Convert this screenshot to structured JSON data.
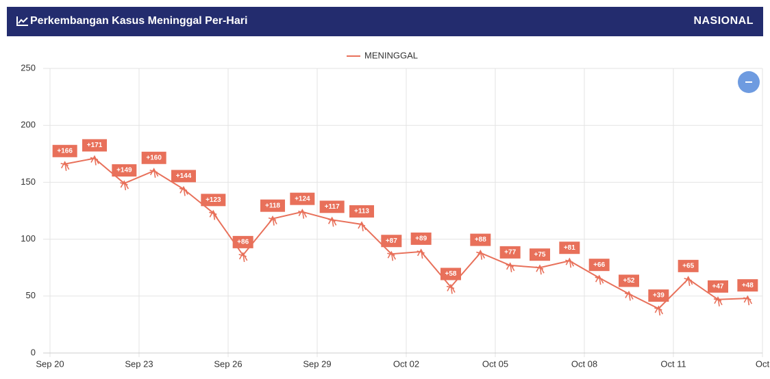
{
  "header": {
    "title": "Perkembangan Kasus Meninggal Per-Hari",
    "region": "NASIONAL"
  },
  "chart_data": {
    "type": "line",
    "categories": [
      "Sep 20",
      null,
      null,
      "Sep 23",
      null,
      null,
      "Sep 26",
      null,
      null,
      "Sep 29",
      null,
      null,
      "Oct 02",
      null,
      null,
      "Oct 05",
      null,
      null,
      "Oct 08",
      null,
      null,
      "Oct 11",
      null,
      null,
      "Oct"
    ],
    "series": [
      {
        "name": "MENINGGAL",
        "color": "#e8705a",
        "values": [
          166,
          171,
          149,
          160,
          144,
          123,
          86,
          118,
          124,
          117,
          113,
          87,
          89,
          58,
          88,
          77,
          75,
          81,
          66,
          52,
          39,
          65,
          47,
          48,
          null
        ],
        "value_labels": [
          "+166",
          "+171",
          "+149",
          "+160",
          "+144",
          "+123",
          "+86",
          "+118",
          "+124",
          "+117",
          "+113",
          "+87",
          "+89",
          "+58",
          "+88",
          "+77",
          "+75",
          "+81",
          "+66",
          "+52",
          "+39",
          "+65",
          "+47",
          "+48",
          null
        ]
      }
    ],
    "ylim": [
      0,
      250
    ],
    "yticks": [
      0,
      50,
      100,
      150,
      200,
      250
    ],
    "grid": true,
    "legend": "top"
  }
}
